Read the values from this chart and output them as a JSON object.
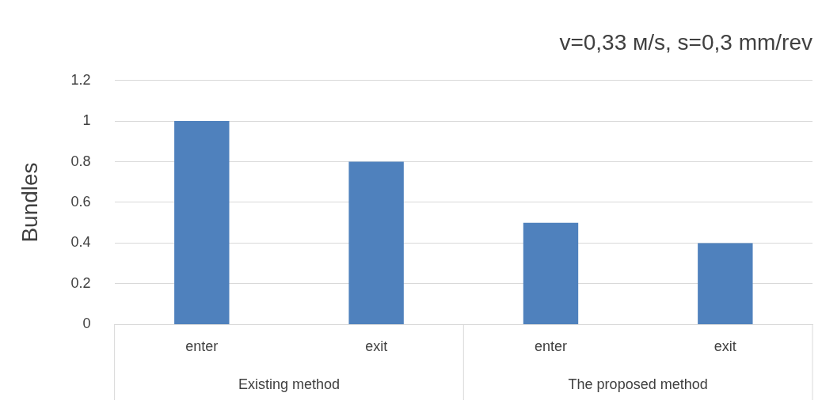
{
  "chart_data": {
    "type": "bar",
    "title": "v=0,33 м/s, s=0,3 mm/rev",
    "ylabel": "Bundles",
    "categories": [
      "enter",
      "exit",
      "enter",
      "exit"
    ],
    "values": [
      1,
      0.8,
      0.5,
      0.4
    ],
    "color": "#4f81bd",
    "ylim": [
      0,
      1.2
    ],
    "yticks": [
      0,
      0.2,
      0.4,
      0.6,
      0.8,
      1,
      1.2
    ],
    "grid": "y",
    "legend": false,
    "annotations": [
      "Existing method",
      "The proposed method"
    ]
  }
}
